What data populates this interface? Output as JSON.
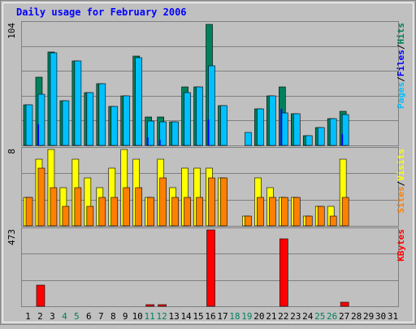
{
  "title": "Daily usage for February 2006",
  "colors": {
    "background": "#c0c0c0",
    "plot_background": "#c0c0c0",
    "border": "#808080",
    "grid": "#808080",
    "title": "#0000ff",
    "weekday_label": "#000000",
    "weekend_label": "#00805c",
    "hits": "#00805c",
    "files": "#0000ff",
    "pages": "#00c0ff",
    "visits": "#ffff00",
    "sites": "#ff8000",
    "kbytes": "#ff0000"
  },
  "chart_data": [
    {
      "type": "bar",
      "panel": "hits-files-pages",
      "ymax_label": "104",
      "ylim": [
        0,
        104
      ],
      "legend": [
        "Pages",
        "/",
        "Files",
        "/",
        "Hits"
      ],
      "categories": [
        "1",
        "2",
        "3",
        "4",
        "5",
        "6",
        "7",
        "8",
        "9",
        "10",
        "11",
        "12",
        "13",
        "14",
        "15",
        "16",
        "17",
        "18",
        "19",
        "20",
        "21",
        "22",
        "23",
        "24",
        "25",
        "26",
        "27",
        "28",
        "29",
        "30",
        "31"
      ],
      "weekend_days": [
        "4",
        "5",
        "11",
        "12",
        "18",
        "19",
        "25",
        "26"
      ],
      "series": [
        {
          "name": "Hits",
          "values": [
            35,
            58,
            80,
            38,
            72,
            45,
            53,
            33,
            42,
            76,
            24,
            24,
            20,
            50,
            50,
            103,
            34,
            0,
            0,
            31,
            42,
            50,
            27,
            8,
            15,
            23,
            29,
            0,
            0,
            0,
            0
          ]
        },
        {
          "name": "Files",
          "values": [
            0,
            18,
            0,
            0,
            0,
            0,
            0,
            0,
            0,
            0,
            7,
            5,
            0,
            0,
            0,
            22,
            0,
            0,
            0,
            0,
            0,
            31,
            0,
            0,
            0,
            0,
            10,
            0,
            0,
            0,
            0
          ]
        },
        {
          "name": "Pages",
          "values": [
            35,
            44,
            79,
            38,
            72,
            45,
            53,
            33,
            42,
            75,
            21,
            20,
            20,
            45,
            50,
            68,
            34,
            0,
            11,
            31,
            42,
            28,
            27,
            8,
            15,
            23,
            26,
            0,
            0,
            0,
            0
          ]
        }
      ]
    },
    {
      "type": "bar",
      "panel": "visits-sites",
      "ymax_label": "8",
      "ylim": [
        0,
        8
      ],
      "legend": [
        "Sites",
        "/",
        "Visits"
      ],
      "categories": [
        "1",
        "2",
        "3",
        "4",
        "5",
        "6",
        "7",
        "8",
        "9",
        "10",
        "11",
        "12",
        "13",
        "14",
        "15",
        "16",
        "17",
        "18",
        "19",
        "20",
        "21",
        "22",
        "23",
        "24",
        "25",
        "26",
        "27",
        "28",
        "29",
        "30",
        "31"
      ],
      "weekend_days": [
        "4",
        "5",
        "11",
        "12",
        "18",
        "19",
        "25",
        "26"
      ],
      "series": [
        {
          "name": "Visits",
          "values": [
            3,
            7,
            8,
            4,
            7,
            5,
            4,
            6,
            8,
            7,
            3,
            7,
            4,
            6,
            6,
            6,
            5,
            0,
            1,
            5,
            4,
            3,
            3,
            1,
            2,
            2,
            7,
            0,
            0,
            0,
            0
          ]
        },
        {
          "name": "Sites",
          "values": [
            3,
            6,
            4,
            2,
            4,
            2,
            3,
            3,
            4,
            4,
            3,
            5,
            3,
            3,
            3,
            5,
            5,
            0,
            1,
            3,
            3,
            3,
            3,
            1,
            2,
            1,
            3,
            0,
            0,
            0,
            0
          ]
        }
      ]
    },
    {
      "type": "bar",
      "panel": "kbytes",
      "ymax_label": "473",
      "ylim": [
        0,
        473
      ],
      "legend": [
        "KBytes"
      ],
      "categories": [
        "1",
        "2",
        "3",
        "4",
        "5",
        "6",
        "7",
        "8",
        "9",
        "10",
        "11",
        "12",
        "13",
        "14",
        "15",
        "16",
        "17",
        "18",
        "19",
        "20",
        "21",
        "22",
        "23",
        "24",
        "25",
        "26",
        "27",
        "28",
        "29",
        "30",
        "31"
      ],
      "weekend_days": [
        "4",
        "5",
        "11",
        "12",
        "18",
        "19",
        "25",
        "26"
      ],
      "series": [
        {
          "name": "KBytes",
          "values": [
            0,
            130,
            0,
            0,
            0,
            0,
            0,
            0,
            0,
            0,
            5,
            10,
            0,
            0,
            0,
            473,
            0,
            0,
            0,
            0,
            0,
            420,
            0,
            0,
            0,
            0,
            25,
            0,
            0,
            0,
            0
          ]
        }
      ]
    }
  ]
}
